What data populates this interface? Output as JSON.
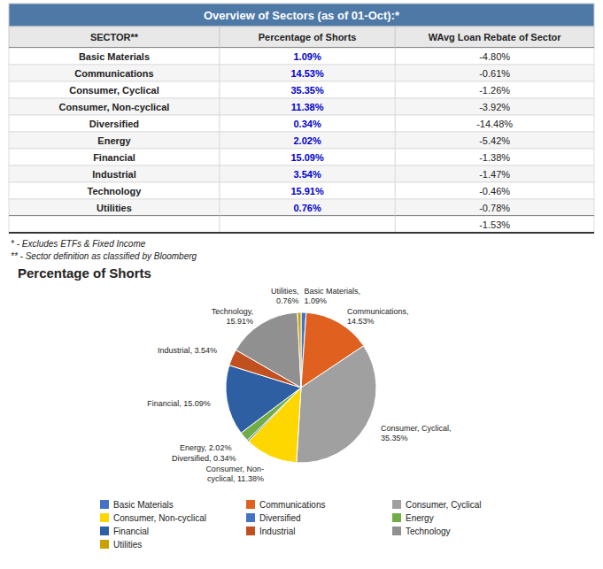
{
  "chart_data": [
    {
      "type": "table",
      "title": "Overview of Sectors (as of 01-Oct):*",
      "x_label": "SECTOR**",
      "categories": [
        "Basic Materials",
        "Communications",
        "Consumer, Cyclical",
        "Consumer, Non-cyclical",
        "Diversified",
        "Energy",
        "Financial",
        "Industrial",
        "Technology",
        "Utilities"
      ],
      "series": [
        {
          "name": "Percentage of Shorts",
          "color": "#0000CC",
          "values": [
            1.09,
            14.53,
            35.35,
            11.38,
            0.34,
            2.02,
            15.09,
            3.54,
            15.91,
            0.76
          ],
          "value_labels": [
            "1.09%",
            "14.53%",
            "35.35%",
            "11.38%",
            "0.34%",
            "2.02%",
            "15.09%",
            "3.54%",
            "15.91%",
            "0.76%"
          ]
        },
        {
          "name": "WAvg Loan Rebate of Sector",
          "values": [
            -4.8,
            -0.61,
            -1.26,
            -3.92,
            -14.48,
            -5.42,
            -1.38,
            -1.47,
            -0.46,
            -0.78
          ],
          "value_labels": [
            "-4.80%",
            "-0.61%",
            "-1.26%",
            "-3.92%",
            "-14.48%",
            "-5.42%",
            "-1.38%",
            "-1.47%",
            "-0.46%",
            "-0.78%"
          ],
          "total": -1.53,
          "total_label": "-1.53%"
        }
      ],
      "annotations": [
        "* - Excludes ETFs & Fixed Income",
        "** - Sector definition as classified by Bloomberg"
      ]
    },
    {
      "type": "pie",
      "title": "Percentage of Shorts",
      "categories": [
        "Basic Materials",
        "Communications",
        "Consumer, Cyclical",
        "Consumer, Non-cyclical",
        "Diversified",
        "Energy",
        "Financial",
        "Industrial",
        "Technology",
        "Utilities"
      ],
      "values": [
        1.09,
        14.53,
        35.35,
        11.38,
        0.34,
        2.02,
        15.09,
        3.54,
        15.91,
        0.76
      ],
      "value_labels": [
        "Basic Materials,\n1.09%",
        "Communications,\n14.53%",
        "Consumer, Cyclical,\n35.35%",
        "Consumer, Non-\ncyclical, 11.38%",
        "Diversified, 0.34%",
        "Energy, 2.02%",
        "Financial, 15.09%",
        "Industrial, 3.54%",
        "Technology,\n15.91%",
        "Utilities,\n0.76%"
      ],
      "colors": [
        "#4472C4",
        "#E06020",
        "#A0A0A0",
        "#FFD700",
        "#4472C4",
        "#70AD47",
        "#2E5FA3",
        "#C05020",
        "#909090",
        "#C9A000"
      ],
      "data_labels": true,
      "legend": "bottom"
    }
  ]
}
